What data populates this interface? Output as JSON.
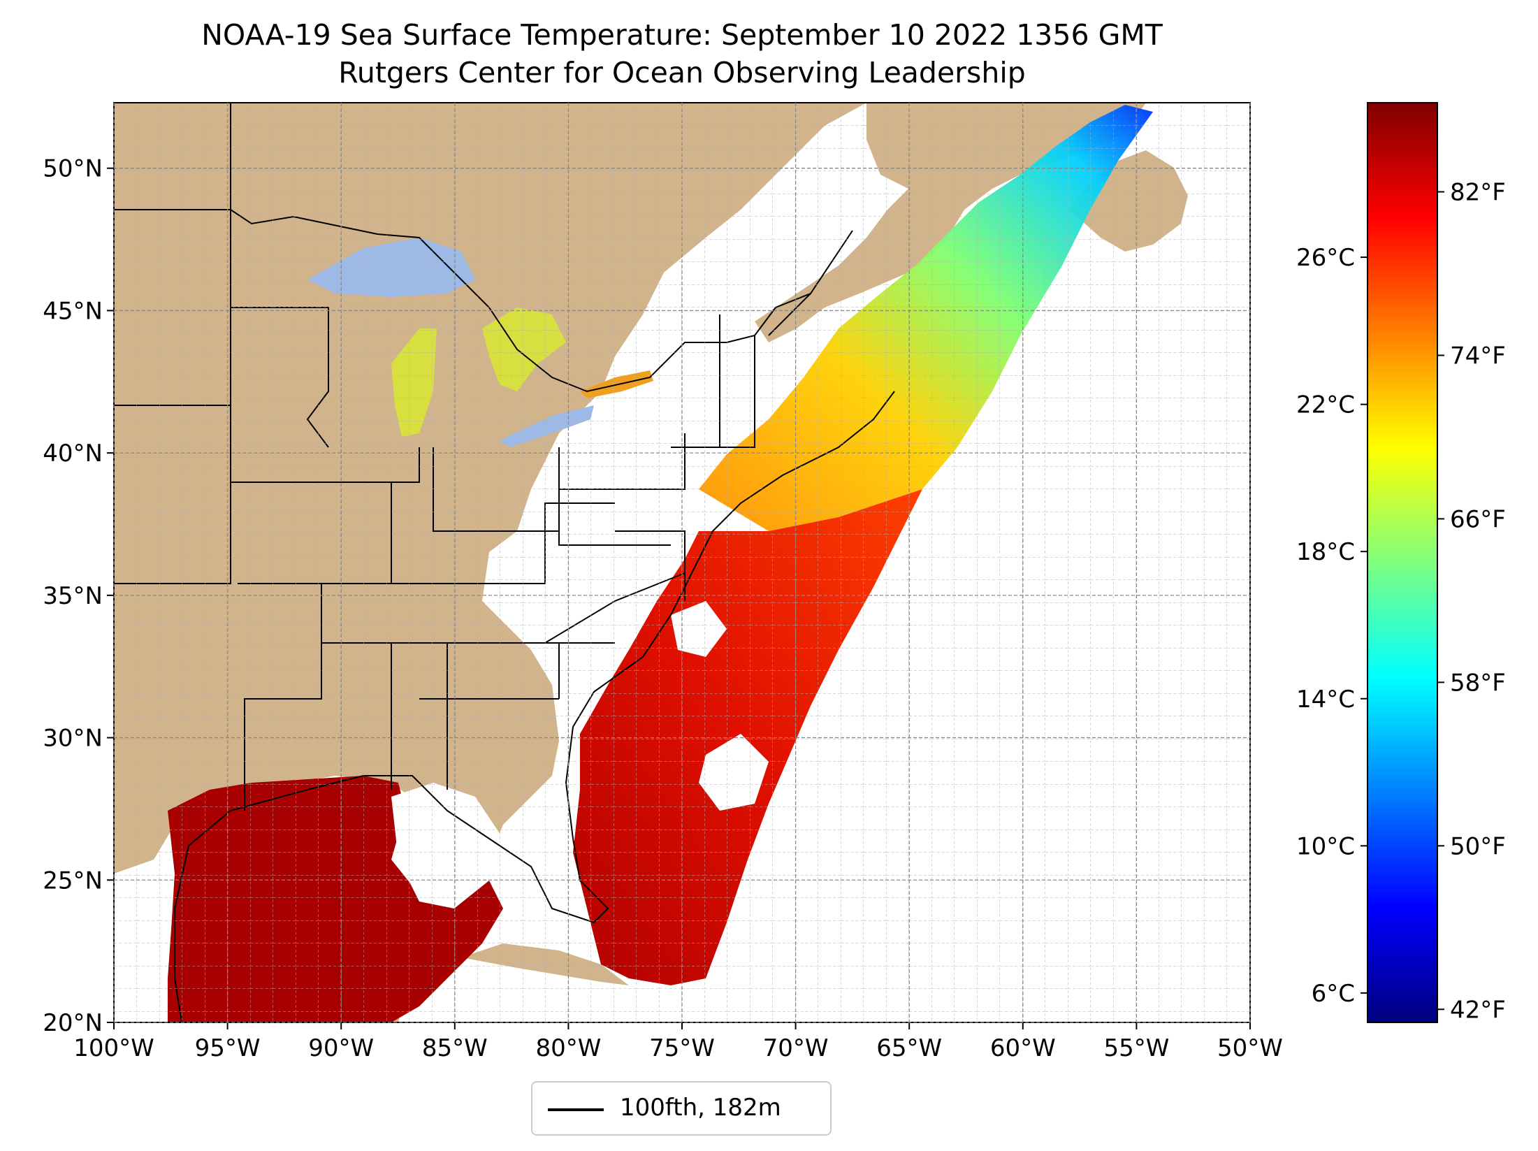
{
  "title": "NOAA-19 Sea Surface Temperature: September 10 2022 1356 GMT",
  "subtitle": "Rutgers Center for Ocean Observing Leadership",
  "legend": {
    "label": "100fth, 182m"
  },
  "map": {
    "lon_range": [
      -100,
      -50
    ],
    "lat_range": [
      20,
      52.3
    ],
    "lon_ticks": [
      "100°W",
      "95°W",
      "90°W",
      "85°W",
      "80°W",
      "75°W",
      "70°W",
      "65°W",
      "60°W",
      "55°W",
      "50°W"
    ],
    "lat_ticks": [
      "20°N",
      "25°N",
      "30°N",
      "35°N",
      "40°N",
      "45°N",
      "50°N"
    ],
    "gridlines": true,
    "colors": {
      "land": "#d2b48c",
      "lakes": "#9db9e6",
      "no_data": "#ffffff",
      "borders": "#000000"
    }
  },
  "colorbar": {
    "colormap": "jet",
    "celsius_range": [
      5.2,
      30.2
    ],
    "celsius_ticks": [
      "6°C",
      "10°C",
      "14°C",
      "18°C",
      "22°C",
      "26°C"
    ],
    "fahrenheit_ticks": [
      "42°F",
      "50°F",
      "58°F",
      "66°F",
      "74°F",
      "82°F"
    ],
    "jet_stops": [
      "#00007f",
      "#0000ff",
      "#007fff",
      "#00ffff",
      "#7fff7f",
      "#ffff00",
      "#ff7f00",
      "#ff0000",
      "#7f0000"
    ]
  }
}
